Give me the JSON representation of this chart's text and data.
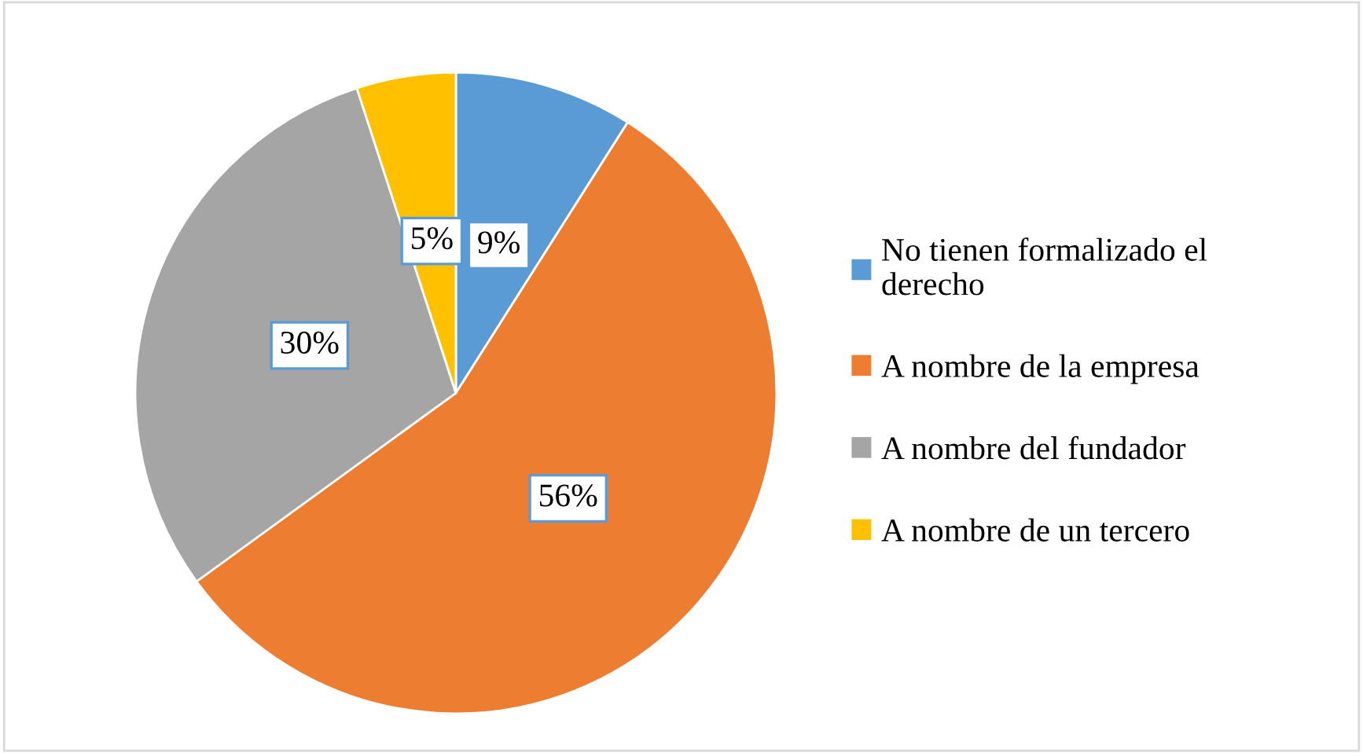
{
  "chart_data": {
    "type": "pie",
    "categories": [
      "No tienen formalizado el derecho",
      "A nombre de la empresa",
      "A nombre del fundador",
      "A nombre de un tercero"
    ],
    "values": [
      9,
      56,
      30,
      5
    ],
    "colors": [
      "#5b9bd5",
      "#ed7d31",
      "#a5a5a5",
      "#ffc000"
    ],
    "value_labels": [
      "9%",
      "56%",
      "30%",
      "5%"
    ],
    "legend": "right"
  }
}
